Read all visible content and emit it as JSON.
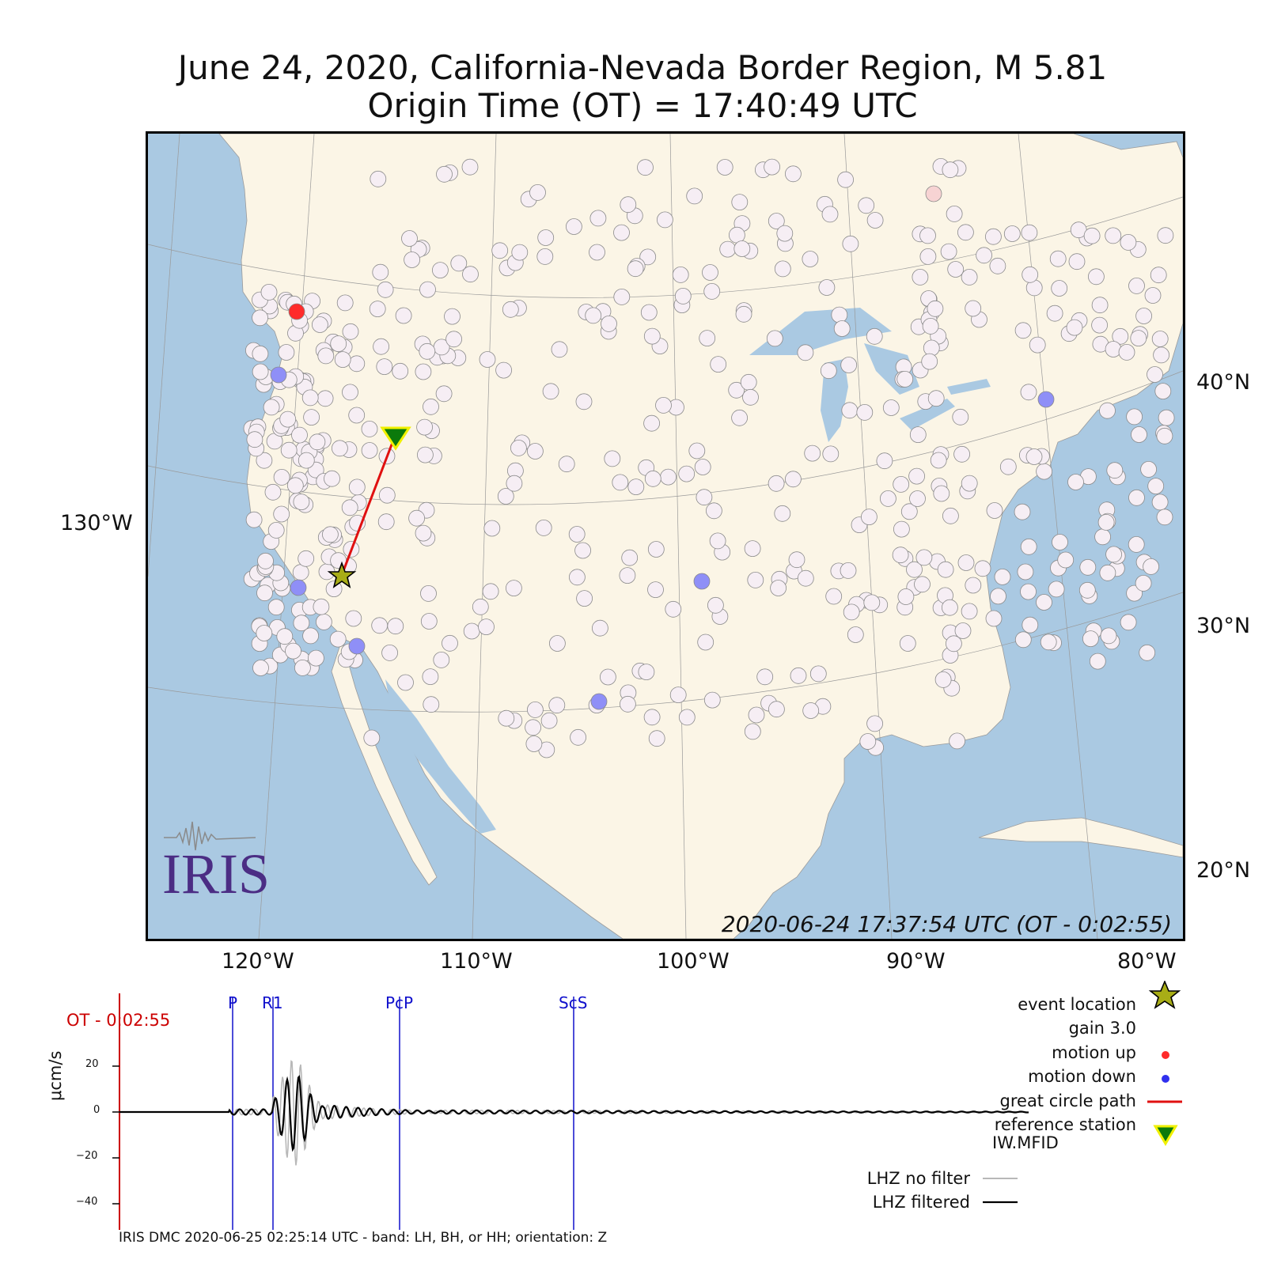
{
  "title": {
    "line1": "June 24, 2020, California-Nevada Border Region, M 5.81",
    "line2": "Origin Time (OT) = 17:40:49 UTC"
  },
  "map": {
    "timestamp": "2020-06-24 17:37:54 UTC (OT - 0:02:55)",
    "lat_labels": [
      "40°N",
      "30°N",
      "20°N"
    ],
    "lon_labels": [
      "120°W",
      "110°W",
      "100°W",
      "90°W",
      "80°W"
    ],
    "west_label": "130°W",
    "colors": {
      "land": "#fbf5e6",
      "water": "#aac9e2",
      "station": "#f6eef4",
      "motion_up": "#ff2b2b",
      "motion_down": "#8f8ff7",
      "path": "#e01010"
    },
    "logo_text": "IRIS",
    "event_icon": "star-icon",
    "reference_icon": "triangle-down-icon"
  },
  "seismogram": {
    "ot_label": "OT - 0:02:55",
    "ylabel": "μcm/s",
    "yticks": [
      "20",
      "0",
      "−20",
      "−40"
    ],
    "phases": [
      "P",
      "R1",
      "PcP",
      "ScS"
    ],
    "footer": "IRIS DMC 2020-06-25 02:25:14 UTC - band: LH, BH, or HH; orientation: Z"
  },
  "legend": {
    "event_location": "event location",
    "gain": "gain  3.0",
    "motion_up": "motion up",
    "motion_down": "motion down",
    "great_circle": "great circle path",
    "ref_station_line1": "reference station",
    "ref_station_line2": "IW.MFID",
    "lhz_nofilter": "LHZ no filter",
    "lhz_filtered": "LHZ filtered"
  }
}
